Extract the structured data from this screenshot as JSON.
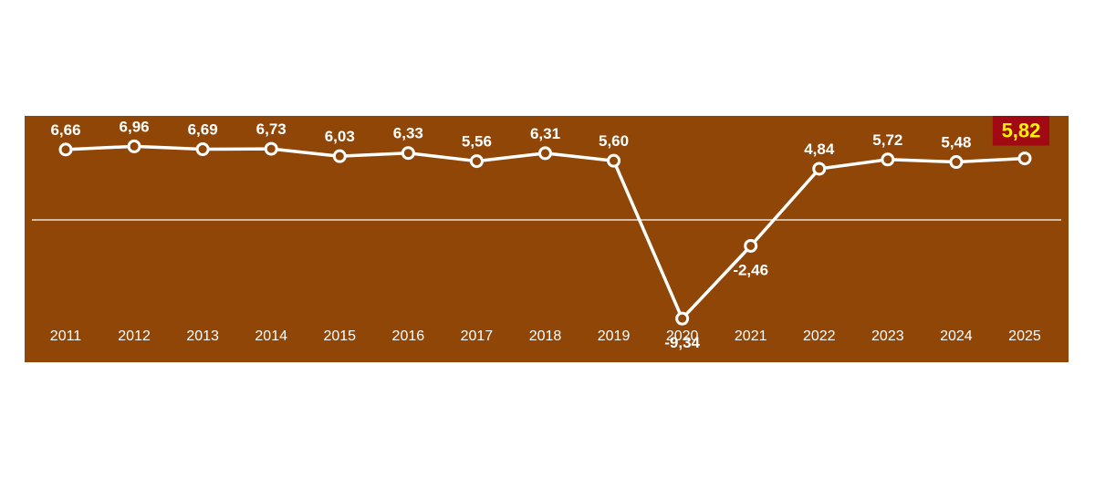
{
  "chart_data": {
    "type": "line",
    "title": "",
    "xlabel": "",
    "ylabel": "",
    "categories": [
      "2011",
      "2012",
      "2013",
      "2014",
      "2015",
      "2016",
      "2017",
      "2018",
      "2019",
      "2020",
      "2021",
      "2022",
      "2023",
      "2024",
      "2025"
    ],
    "series": [
      {
        "values": [
          6.66,
          6.96,
          6.69,
          6.73,
          6.03,
          6.33,
          5.56,
          6.31,
          5.6,
          -9.34,
          -2.46,
          4.84,
          5.72,
          5.48,
          5.82
        ]
      }
    ],
    "value_labels": [
      "6,66",
      "6,96",
      "6,69",
      "6,73",
      "6,03",
      "6,33",
      "5,56",
      "6,31",
      "5,60",
      "-9,34",
      "-2,46",
      "4,84",
      "5,72",
      "5,48",
      "5,82"
    ],
    "highlighted_index": 14,
    "ylim": [
      -12,
      9
    ],
    "zero_line": true,
    "grid": false,
    "legend": "none"
  },
  "colors": {
    "background": "#8f4606",
    "line": "#ffffff",
    "marker_fill": "#8f4606",
    "highlight_box": "#a10a13",
    "highlight_text": "#fff200"
  }
}
